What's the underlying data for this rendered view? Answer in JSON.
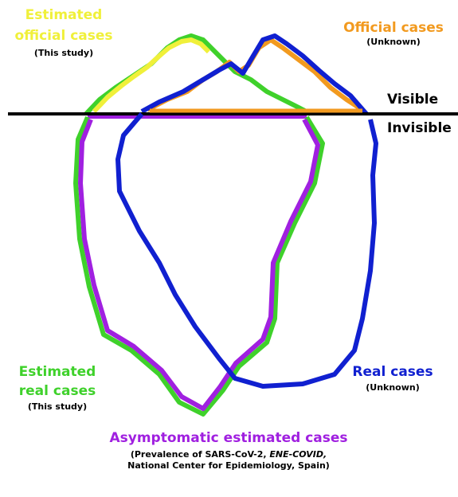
{
  "labels": {
    "estimated_official_cases": {
      "title_lines": [
        "Estimated",
        "official cases"
      ],
      "note": "(This study)"
    },
    "official_cases": {
      "title": "Official cases",
      "note": "(Unknown)"
    },
    "visible": "Visible",
    "invisible": "Invisible",
    "estimated_real_cases": {
      "title_lines": [
        "Estimated",
        "real cases"
      ],
      "note": "(This study)"
    },
    "real_cases": {
      "title": "Real cases",
      "note": "(Unknown)"
    },
    "asymptomatic_estimated_cases": {
      "title": "Asymptomatic estimated cases",
      "source_line_1_parts": [
        "(Prevalence of SARS-CoV-2, ",
        "ENE-COVID,"
      ],
      "source_line_2": "National Center for Epidemiology, Spain)"
    }
  }
}
